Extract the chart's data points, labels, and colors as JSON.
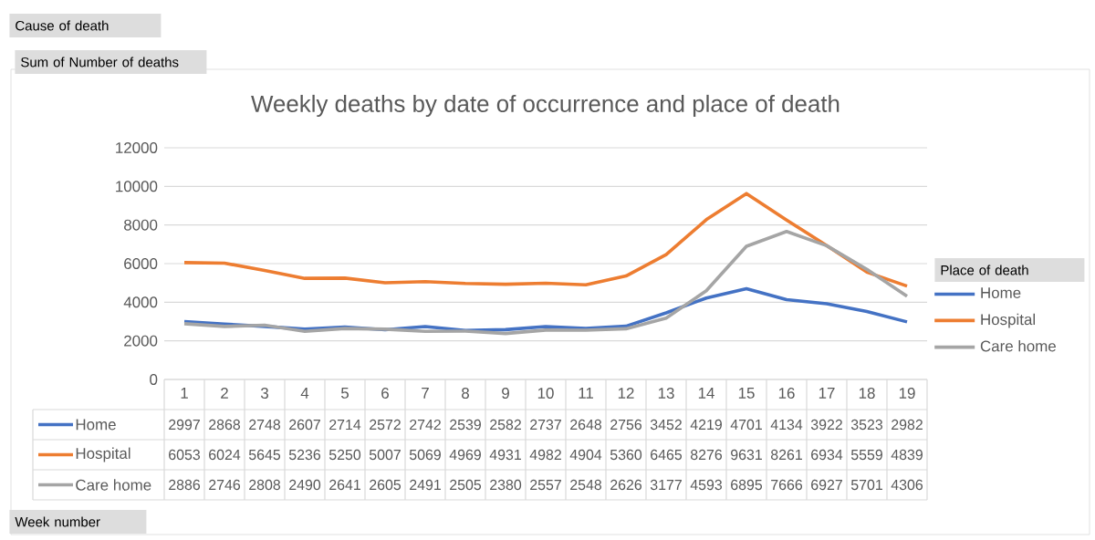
{
  "chart_data": {
    "type": "line",
    "title": "Weekly deaths by date of occurrence and place of death",
    "legend_title": "Place of death",
    "annotations": [
      "Cause of death",
      "Sum of Number of deaths",
      "Week number"
    ],
    "categories": [
      "1",
      "2",
      "3",
      "4",
      "5",
      "6",
      "7",
      "8",
      "9",
      "10",
      "11",
      "12",
      "13",
      "14",
      "15",
      "16",
      "17",
      "18",
      "19"
    ],
    "series": [
      {
        "name": "Home",
        "color": "#4472c4",
        "values": [
          2997,
          2868,
          2748,
          2607,
          2714,
          2572,
          2742,
          2539,
          2582,
          2737,
          2648,
          2756,
          3452,
          4219,
          4701,
          4134,
          3922,
          3523,
          2982
        ]
      },
      {
        "name": "Hospital",
        "color": "#ed7d31",
        "values": [
          6053,
          6024,
          5645,
          5236,
          5250,
          5007,
          5069,
          4969,
          4931,
          4982,
          4904,
          5360,
          6465,
          8276,
          9631,
          8261,
          6934,
          5559,
          4839
        ]
      },
      {
        "name": "Care home",
        "color": "#a5a5a5",
        "values": [
          2886,
          2746,
          2808,
          2490,
          2641,
          2605,
          2491,
          2505,
          2380,
          2557,
          2548,
          2626,
          3177,
          4593,
          6895,
          7666,
          6927,
          5701,
          4306
        ]
      }
    ],
    "ylim": [
      0,
      12000
    ],
    "yticks": [
      0,
      2000,
      4000,
      6000,
      8000,
      10000,
      12000
    ],
    "grid": "y",
    "legend": "right",
    "data_labels": true,
    "marker": "none",
    "line_style": "solid"
  }
}
